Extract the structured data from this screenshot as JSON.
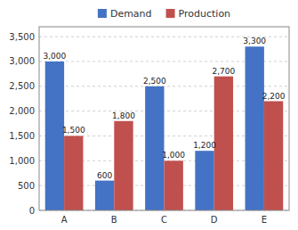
{
  "chart_data": {
    "type": "bar",
    "categories": [
      "A",
      "B",
      "C",
      "D",
      "E"
    ],
    "series": [
      {
        "name": "Demand",
        "color": "#4472C4",
        "values": [
          3000,
          600,
          2500,
          1200,
          3300
        ],
        "value_labels": [
          "3,000",
          "600",
          "2,500",
          "1,200",
          "3,300"
        ]
      },
      {
        "name": "Production",
        "color": "#C0504D",
        "values": [
          1500,
          1800,
          1000,
          2700,
          2200
        ],
        "value_labels": [
          "1,500",
          "1,800",
          "1,000",
          "2,700",
          "2,200"
        ]
      }
    ],
    "ylim": [
      0,
      3700
    ],
    "yticks": [
      0,
      500,
      {
        "value": 1000,
        "label": "1,000"
      },
      {
        "value": 1500,
        "label": "1,500"
      },
      {
        "value": 2000,
        "label": "2,000"
      },
      {
        "value": 2500,
        "label": "2,500"
      },
      {
        "value": 3000,
        "label": "3,000"
      },
      {
        "value": 3500,
        "label": "3,500"
      }
    ],
    "grid": true,
    "legend": "top",
    "data_labels": true
  }
}
